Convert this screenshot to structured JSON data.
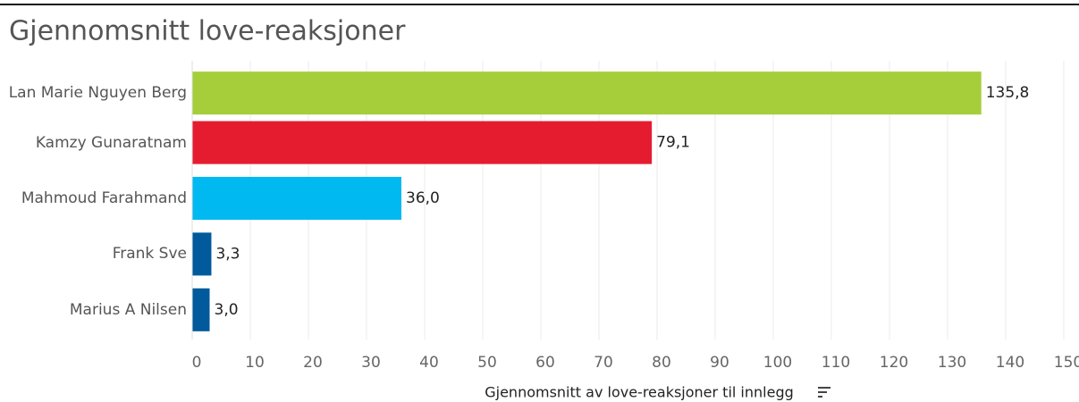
{
  "chart_data": {
    "type": "bar",
    "orientation": "horizontal",
    "title": "Gjennomsnitt love-reaksjoner",
    "x_label": "Gjennomsnitt av love-reaksjoner til innlegg",
    "categories": [
      "Lan Marie Nguyen Berg",
      "Kamzy Gunaratnam",
      "Mahmoud Farahmand",
      "Frank Sve",
      "Marius A Nilsen"
    ],
    "values": [
      135.8,
      79.1,
      36.0,
      3.3,
      3.0
    ],
    "value_labels": [
      "135,8",
      "79,1",
      "36,0",
      "3,3",
      "3,0"
    ],
    "colors": [
      "#a5ce3a",
      "#e51c30",
      "#00b9f1",
      "#005a9c",
      "#005a9c"
    ],
    "xlim": [
      0,
      150
    ],
    "xticks": [
      0,
      10,
      20,
      30,
      40,
      50,
      60,
      70,
      80,
      90,
      100,
      110,
      120,
      130,
      140,
      150
    ],
    "grid": true
  }
}
